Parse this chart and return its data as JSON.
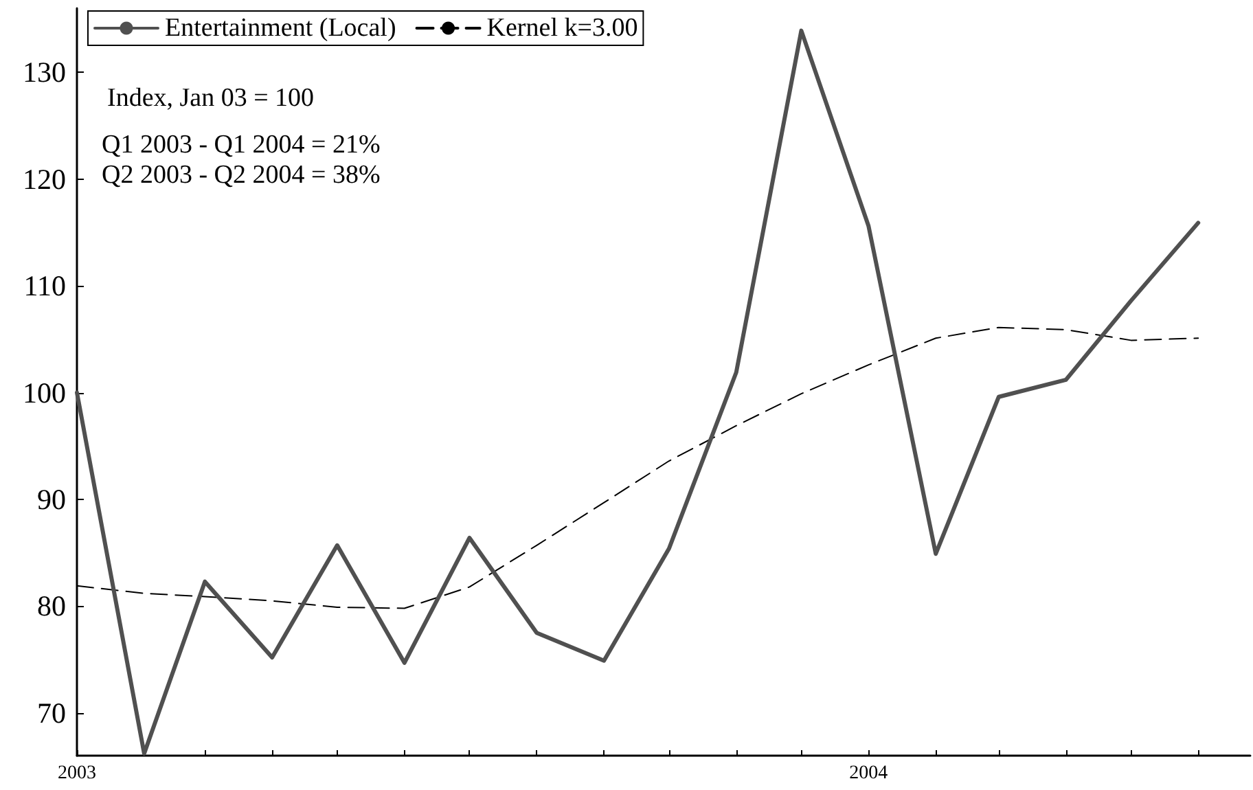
{
  "chart_data": {
    "type": "line",
    "annotations": [
      "Index, Jan 03 = 100",
      "Q1 2003 - Q1 2004 = 21%",
      "Q2 2003 - Q2 2004 = 38%"
    ],
    "x": [
      "2003-01",
      "2003-02",
      "2003-03",
      "2003-04",
      "2003-05",
      "2003-06",
      "2003-07",
      "2003-08",
      "2003-09",
      "2003-10",
      "2003-11",
      "2003-12",
      "2004-01",
      "2004-02",
      "2004-03",
      "2004-04",
      "2004-05",
      "2004-06"
    ],
    "series": [
      {
        "name": "Entertainment (Local)",
        "color": "#505050",
        "line_style": "solid",
        "values": [
          100,
          66.2,
          82.3,
          75.2,
          85.7,
          74.7,
          86.4,
          77.5,
          74.9,
          85.4,
          101.9,
          133.9,
          115.6,
          84.9,
          99.6,
          101.2,
          108.6,
          115.9
        ]
      },
      {
        "name": "Kernel k=3.00",
        "color": "#000000",
        "line_style": "dashed",
        "values": [
          81.9,
          81.2,
          80.9,
          80.5,
          79.9,
          79.8,
          81.8,
          85.7,
          89.7,
          93.6,
          96.9,
          99.9,
          102.6,
          105.1,
          106.1,
          105.9,
          104.9,
          105.1
        ]
      }
    ],
    "xlim": [
      "2003-01",
      "2004-06-25"
    ],
    "xticks": [
      {
        "value": "2003-01",
        "label": "2003"
      },
      {
        "value": "2003-02",
        "label": null
      },
      {
        "value": "2003-03",
        "label": null
      },
      {
        "value": "2003-04",
        "label": null
      },
      {
        "value": "2003-05",
        "label": null
      },
      {
        "value": "2003-06",
        "label": null
      },
      {
        "value": "2003-07",
        "label": null
      },
      {
        "value": "2003-08",
        "label": null
      },
      {
        "value": "2003-09",
        "label": null
      },
      {
        "value": "2003-10",
        "label": null
      },
      {
        "value": "2003-11",
        "label": null
      },
      {
        "value": "2003-12",
        "label": null
      },
      {
        "value": "2004-01",
        "label": "2004"
      },
      {
        "value": "2004-02",
        "label": null
      },
      {
        "value": "2004-03",
        "label": null
      },
      {
        "value": "2004-04",
        "label": null
      },
      {
        "value": "2004-05",
        "label": null
      },
      {
        "value": "2004-06",
        "label": null
      }
    ],
    "ylim": [
      66,
      136
    ],
    "yticks": [
      70,
      80,
      90,
      100,
      110,
      120,
      130
    ],
    "grid": false,
    "legend": "top left",
    "marker": "none"
  }
}
